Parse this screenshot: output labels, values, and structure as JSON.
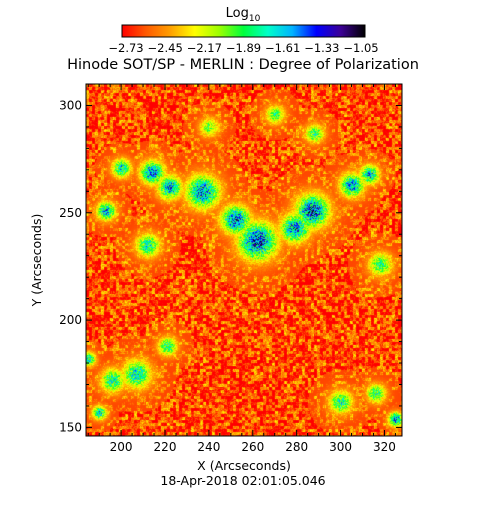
{
  "chart_data": {
    "type": "heatmap",
    "title": "Hinode SOT/SP - MERLIN : Degree of Polarization",
    "subtitle": "",
    "xlabel": "X (Arcseconds)",
    "ylabel": "Y (Arcseconds)",
    "xlim": [
      184,
      328
    ],
    "ylim": [
      146,
      310
    ],
    "xticks": [
      200,
      220,
      240,
      260,
      280,
      300,
      320
    ],
    "yticks": [
      150,
      200,
      250,
      300
    ],
    "colorbar": {
      "label_base": "Log",
      "label_sub": "10",
      "min": -2.73,
      "max": -1.05,
      "tick_labels": [
        "−2.73",
        "−2.45",
        "−2.17",
        "−1.89",
        "−1.61",
        "−1.33",
        "−1.05"
      ],
      "colors": [
        "#ff0000",
        "#ff5a00",
        "#ffa000",
        "#ffff00",
        "#9cff00",
        "#00ff3c",
        "#00ffc8",
        "#00b4ff",
        "#0000ff",
        "#3c0096",
        "#000000"
      ]
    },
    "footer": "18-Apr-2018 02:01:05.046",
    "background_level": -2.6,
    "polarization_features": [
      {
        "x": 262,
        "y": 237,
        "size": 8,
        "peak": -1.4
      },
      {
        "x": 252,
        "y": 247,
        "size": 6,
        "peak": -1.45
      },
      {
        "x": 287,
        "y": 251,
        "size": 7,
        "peak": -1.4
      },
      {
        "x": 279,
        "y": 243,
        "size": 6,
        "peak": -1.5
      },
      {
        "x": 237,
        "y": 260,
        "size": 7,
        "peak": -1.5
      },
      {
        "x": 222,
        "y": 262,
        "size": 5,
        "peak": -1.55
      },
      {
        "x": 214,
        "y": 269,
        "size": 5,
        "peak": -1.5
      },
      {
        "x": 305,
        "y": 263,
        "size": 5,
        "peak": -1.55
      },
      {
        "x": 313,
        "y": 268,
        "size": 4,
        "peak": -1.6
      },
      {
        "x": 193,
        "y": 251,
        "size": 4,
        "peak": -1.6
      },
      {
        "x": 200,
        "y": 271,
        "size": 4,
        "peak": -1.7
      },
      {
        "x": 212,
        "y": 235,
        "size": 5,
        "peak": -1.75
      },
      {
        "x": 207,
        "y": 175,
        "size": 6,
        "peak": -1.7
      },
      {
        "x": 196,
        "y": 172,
        "size": 5,
        "peak": -1.75
      },
      {
        "x": 221,
        "y": 188,
        "size": 4,
        "peak": -1.8
      },
      {
        "x": 300,
        "y": 162,
        "size": 5,
        "peak": -1.8
      },
      {
        "x": 316,
        "y": 166,
        "size": 4,
        "peak": -1.8
      },
      {
        "x": 288,
        "y": 287,
        "size": 4,
        "peak": -1.85
      },
      {
        "x": 270,
        "y": 296,
        "size": 4,
        "peak": -1.9
      },
      {
        "x": 325,
        "y": 154,
        "size": 3,
        "peak": -1.5
      },
      {
        "x": 190,
        "y": 157,
        "size": 3,
        "peak": -1.7
      },
      {
        "x": 318,
        "y": 226,
        "size": 5,
        "peak": -1.85
      },
      {
        "x": 240,
        "y": 290,
        "size": 4,
        "peak": -1.95
      },
      {
        "x": 185,
        "y": 182,
        "size": 3,
        "peak": -1.7
      }
    ]
  }
}
